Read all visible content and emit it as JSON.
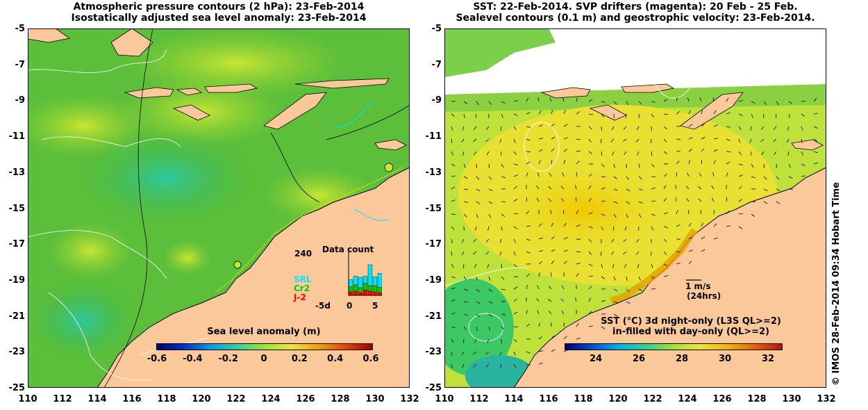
{
  "left_panel": {
    "title_line1": "Atmospheric pressure contours (2 hPa): 23-Feb-2014",
    "title_line2": "Isostatically adjusted sea level anomaly: 23-Feb-2014",
    "colorbar_title": "Sea level anomaly (m)",
    "colorbar_ticks": [
      "-0.6",
      "-0.4",
      "-0.2",
      "0",
      "0.2",
      "0.4",
      "0.6"
    ],
    "inset": {
      "title": "Data count",
      "max_label": "240",
      "x_ticks": [
        "-5d",
        "0",
        "5"
      ],
      "legend": [
        {
          "label": "SRL",
          "color": "#00e5ff"
        },
        {
          "label": "Cr2",
          "color": "#00cc00"
        },
        {
          "label": "J-2",
          "color": "#ff0000"
        }
      ]
    }
  },
  "right_panel": {
    "title_line1": "SST: 22-Feb-2014. SVP drifters (magenta): 20 Feb - 25 Feb.",
    "title_line2": "Sealevel contours (0.1 m) and geostrophic velocity: 23-Feb-2014.",
    "colorbar_title_line1": "SST (°C)  3d night-only (L3S QL>=2)",
    "colorbar_title_line2": "in-filled with day-only (QL>=2)",
    "colorbar_ticks": [
      "24",
      "26",
      "28",
      "30",
      "32"
    ],
    "scale_label_speed": "1 m/s",
    "scale_label_time": "(24hrs)"
  },
  "axes": {
    "y_ticks": [
      "-5",
      "-7",
      "-9",
      "-11",
      "-13",
      "-15",
      "-17",
      "-19",
      "-21",
      "-23",
      "-25"
    ],
    "x_ticks": [
      "110",
      "112",
      "114",
      "116",
      "118",
      "120",
      "122",
      "124",
      "126",
      "128",
      "130",
      "132"
    ]
  },
  "side_label": "© IMOS 28-Feb-2014 09:34 Hobart Time",
  "colors": {
    "land": "#fbc89a",
    "ocean_left": "#64c832",
    "ocean_right": "#f0e632",
    "accent_contour": "#000000"
  }
}
